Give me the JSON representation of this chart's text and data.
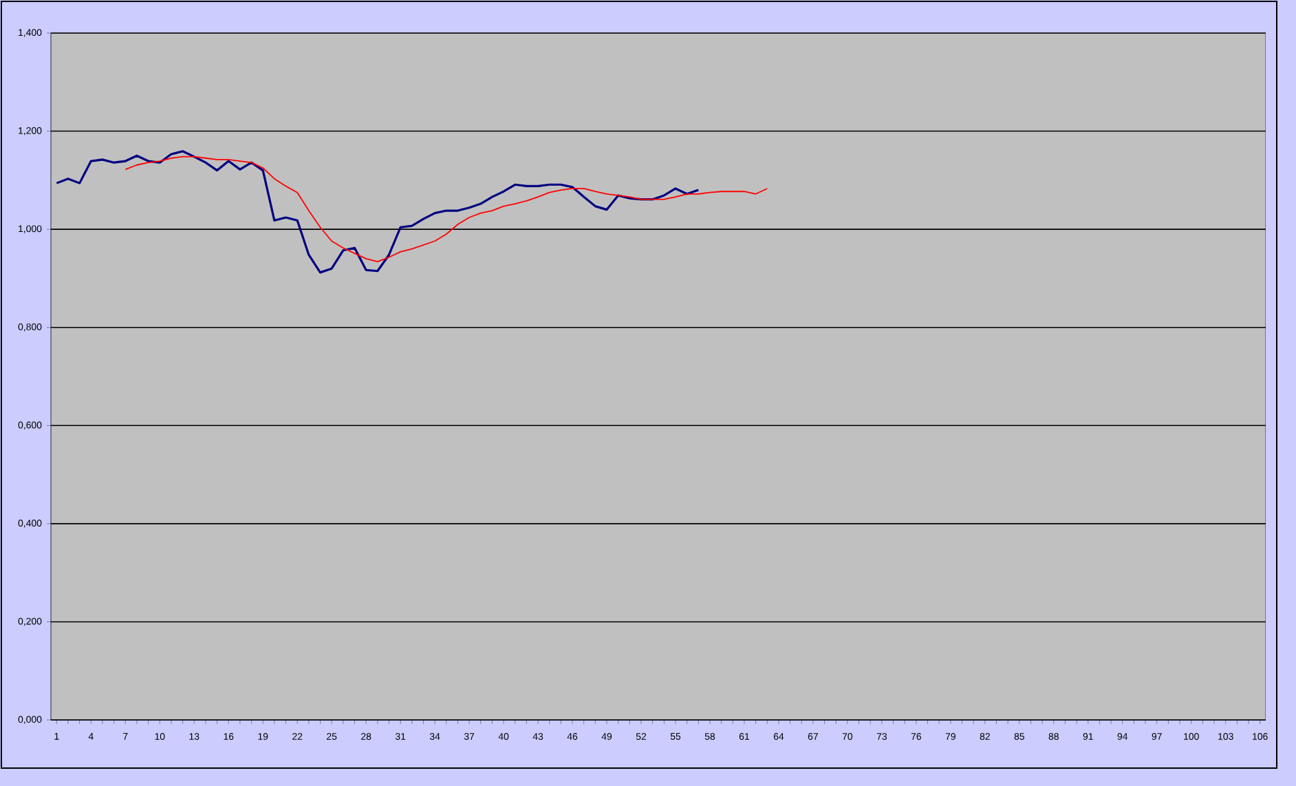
{
  "chart_data": {
    "type": "line",
    "categories": [
      "1",
      null,
      null,
      "4",
      null,
      null,
      "7",
      null,
      null,
      "10",
      null,
      null,
      "13",
      null,
      null,
      "16",
      null,
      null,
      "19",
      null,
      null,
      "22",
      null,
      null,
      "25",
      null,
      null,
      "28",
      null,
      null,
      "31",
      null,
      null,
      "34",
      null,
      null,
      "37",
      null,
      null,
      "40",
      null,
      null,
      "43",
      null,
      null,
      "46",
      null,
      null,
      "49",
      null,
      null,
      "52",
      null,
      null,
      "55",
      null,
      null,
      "58",
      null,
      null,
      "61",
      null,
      null,
      "64",
      null,
      null,
      "67",
      null,
      null,
      "70",
      null,
      null,
      "73",
      null,
      null,
      "76",
      null,
      null,
      "79",
      null,
      null,
      "82",
      null,
      null,
      "85",
      null,
      null,
      "88",
      null,
      null,
      "91",
      null,
      null,
      "94",
      null,
      null,
      "97",
      null,
      null,
      "100",
      null,
      null,
      "103",
      null,
      null,
      "106"
    ],
    "series": [
      {
        "color": "#000080",
        "values": [
          1.094,
          1.103,
          1.094,
          1.139,
          1.142,
          1.136,
          1.139,
          1.15,
          1.139,
          1.136,
          1.153,
          1.159,
          1.148,
          1.136,
          1.12,
          1.139,
          1.122,
          1.136,
          1.12,
          1.018,
          1.024,
          1.018,
          0.948,
          0.912,
          0.92,
          0.957,
          0.962,
          0.917,
          0.915,
          0.948,
          1.004,
          1.007,
          1.021,
          1.033,
          1.038,
          1.038,
          1.044,
          1.052,
          1.066,
          1.077,
          1.091,
          1.088,
          1.088,
          1.091,
          1.091,
          1.086,
          1.066,
          1.047,
          1.04,
          1.069,
          1.063,
          1.061,
          1.061,
          1.069,
          1.083,
          1.072,
          1.08,
          null,
          null,
          null,
          null,
          null,
          null,
          null,
          null,
          null,
          null,
          null,
          null,
          null,
          null,
          null,
          null,
          null,
          null,
          null,
          null,
          null,
          null,
          null,
          null,
          null,
          null,
          null,
          null,
          null,
          null,
          null,
          null,
          null,
          null,
          null,
          null,
          null,
          null,
          null,
          null,
          null,
          null,
          null,
          null,
          null,
          null,
          null,
          null,
          null
        ]
      },
      {
        "color": "#ff0000",
        "values": [
          null,
          null,
          null,
          null,
          null,
          null,
          1.122,
          1.131,
          1.136,
          1.139,
          1.145,
          1.148,
          1.148,
          1.145,
          1.142,
          1.142,
          1.139,
          1.136,
          1.125,
          1.103,
          1.088,
          1.075,
          1.038,
          1.004,
          0.976,
          0.962,
          0.951,
          0.94,
          0.934,
          0.943,
          0.954,
          0.96,
          0.968,
          0.976,
          0.99,
          1.01,
          1.024,
          1.033,
          1.038,
          1.047,
          1.052,
          1.058,
          1.066,
          1.075,
          1.08,
          1.083,
          1.083,
          1.077,
          1.072,
          1.069,
          1.066,
          1.061,
          1.061,
          1.061,
          1.066,
          1.072,
          1.072,
          1.075,
          1.077,
          1.077,
          1.077,
          1.072,
          1.083,
          null,
          null,
          null,
          null,
          null,
          null,
          null,
          null,
          null,
          null,
          null,
          null,
          null,
          null,
          null,
          null,
          null,
          null,
          null,
          null,
          null,
          null,
          null,
          null,
          null,
          null,
          null,
          null,
          null,
          null,
          null,
          null,
          null,
          null,
          null,
          null,
          null,
          null,
          null,
          null,
          null,
          null,
          null
        ]
      }
    ],
    "ylim": [
      0,
      1.4
    ],
    "yticks": [
      {
        "value": 0,
        "label": "0,000"
      },
      {
        "value": 0.2,
        "label": "0,200"
      },
      {
        "value": 0.4,
        "label": "0,400"
      },
      {
        "value": 0.6,
        "label": "0,600"
      },
      {
        "value": 0.8,
        "label": "0,800"
      },
      {
        "value": 1.0,
        "label": "1,000"
      },
      {
        "value": 1.2,
        "label": "1,200"
      },
      {
        "value": 1.4,
        "label": "1,400"
      }
    ],
    "grid": "y"
  }
}
